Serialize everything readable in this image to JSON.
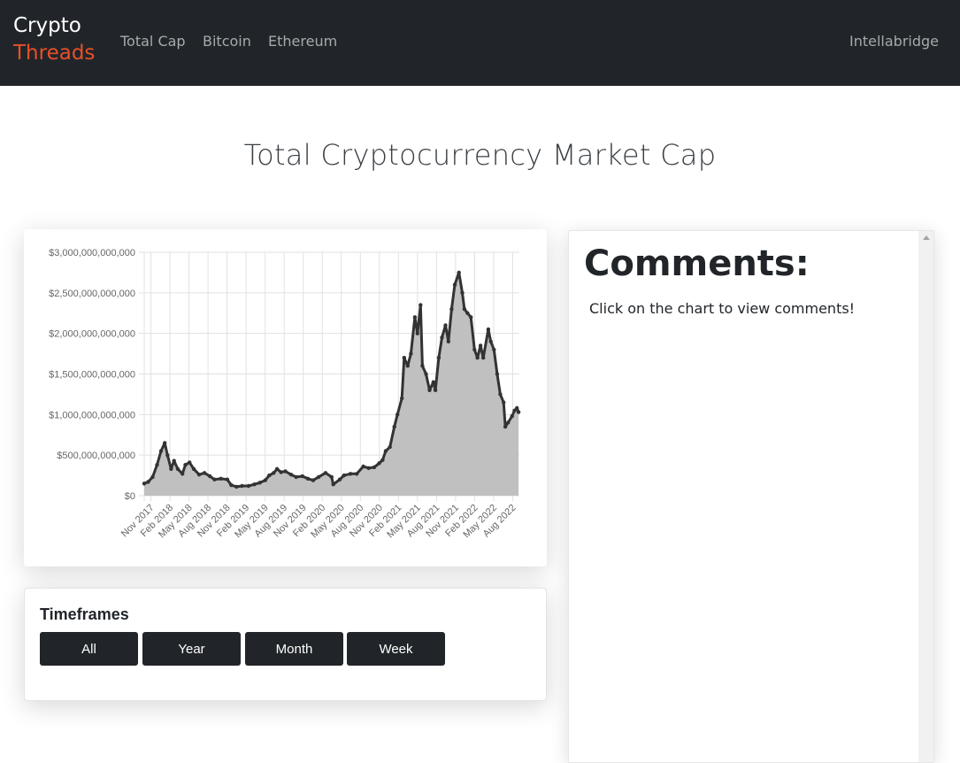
{
  "navbar": {
    "brand_top": "Crypto",
    "brand_bottom": "Threads",
    "links": [
      "Total Cap",
      "Bitcoin",
      "Ethereum"
    ],
    "right": "Intellabridge"
  },
  "page_title": "Total Cryptocurrency Market Cap",
  "timeframes": {
    "title": "Timeframes",
    "buttons": [
      "All",
      "Year",
      "Month",
      "Week"
    ]
  },
  "comments": {
    "title": "Comments:",
    "hint": "Click on the chart to view comments!"
  },
  "chart_data": {
    "type": "area",
    "title": "",
    "xlabel": "",
    "ylabel": "",
    "ylim": [
      0,
      3000000000000
    ],
    "grid": true,
    "fill_color": "#c0c0c0",
    "line_color": "#333333",
    "y_ticks": [
      "$0",
      "$500,000,000,000",
      "$1,000,000,000,000",
      "$1,500,000,000,000",
      "$2,000,000,000,000",
      "$2,500,000,000,000",
      "$3,000,000,000,000"
    ],
    "x_ticks": [
      "Nov 2017",
      "Feb 2018",
      "May 2018",
      "Aug 2018",
      "Nov 2018",
      "Feb 2019",
      "May 2019",
      "Aug 2019",
      "Nov 2019",
      "Feb 2020",
      "May 2020",
      "Aug 2020",
      "Nov 2020",
      "Feb 2021",
      "May 2021",
      "Aug 2021",
      "Nov 2021",
      "Feb 2022",
      "May 2022",
      "Aug 2022"
    ],
    "x": [
      "2017-10-01",
      "2017-10-20",
      "2017-11-10",
      "2017-12-01",
      "2017-12-20",
      "2018-01-07",
      "2018-01-20",
      "2018-02-06",
      "2018-02-20",
      "2018-03-10",
      "2018-04-01",
      "2018-04-15",
      "2018-05-05",
      "2018-05-25",
      "2018-06-20",
      "2018-07-15",
      "2018-08-10",
      "2018-09-01",
      "2018-10-01",
      "2018-11-01",
      "2018-11-20",
      "2018-12-15",
      "2019-01-10",
      "2019-02-10",
      "2019-03-10",
      "2019-04-05",
      "2019-05-01",
      "2019-05-20",
      "2019-06-10",
      "2019-06-26",
      "2019-07-15",
      "2019-08-05",
      "2019-09-01",
      "2019-09-25",
      "2019-10-25",
      "2019-11-20",
      "2019-12-15",
      "2020-01-10",
      "2020-02-12",
      "2020-03-12",
      "2020-03-20",
      "2020-04-20",
      "2020-05-10",
      "2020-06-10",
      "2020-07-10",
      "2020-08-10",
      "2020-09-05",
      "2020-10-01",
      "2020-10-25",
      "2020-11-10",
      "2020-11-25",
      "2020-12-15",
      "2021-01-05",
      "2021-01-20",
      "2021-02-10",
      "2021-02-21",
      "2021-03-10",
      "2021-03-25",
      "2021-04-13",
      "2021-04-25",
      "2021-05-10",
      "2021-05-19",
      "2021-06-05",
      "2021-06-22",
      "2021-07-10",
      "2021-07-20",
      "2021-08-05",
      "2021-08-20",
      "2021-09-06",
      "2021-09-20",
      "2021-10-05",
      "2021-10-20",
      "2021-11-09",
      "2021-11-25",
      "2021-12-05",
      "2021-12-20",
      "2022-01-05",
      "2022-01-22",
      "2022-02-05",
      "2022-02-20",
      "2022-03-05",
      "2022-03-29",
      "2022-04-10",
      "2022-04-25",
      "2022-05-10",
      "2022-05-25",
      "2022-06-10",
      "2022-06-18",
      "2022-07-01",
      "2022-07-20",
      "2022-08-01",
      "2022-08-12",
      "2022-08-20"
    ],
    "series": [
      {
        "values": [
          150000000000,
          170000000000,
          230000000000,
          380000000000,
          550000000000,
          650000000000,
          500000000000,
          330000000000,
          430000000000,
          330000000000,
          270000000000,
          380000000000,
          410000000000,
          330000000000,
          260000000000,
          280000000000,
          240000000000,
          200000000000,
          210000000000,
          200000000000,
          130000000000,
          110000000000,
          120000000000,
          120000000000,
          140000000000,
          160000000000,
          190000000000,
          250000000000,
          280000000000,
          330000000000,
          290000000000,
          300000000000,
          260000000000,
          230000000000,
          240000000000,
          210000000000,
          190000000000,
          230000000000,
          280000000000,
          230000000000,
          140000000000,
          200000000000,
          250000000000,
          270000000000,
          270000000000,
          360000000000,
          340000000000,
          350000000000,
          400000000000,
          440000000000,
          550000000000,
          600000000000,
          850000000000,
          1000000000000,
          1200000000000,
          1700000000000,
          1600000000000,
          1750000000000,
          2200000000000,
          2000000000000,
          2350000000000,
          1600000000000,
          1500000000000,
          1300000000000,
          1400000000000,
          1300000000000,
          1700000000000,
          1950000000000,
          2100000000000,
          1900000000000,
          2300000000000,
          2600000000000,
          2750000000000,
          2500000000000,
          2300000000000,
          2250000000000,
          2200000000000,
          1800000000000,
          1700000000000,
          1850000000000,
          1700000000000,
          2050000000000,
          1900000000000,
          1800000000000,
          1500000000000,
          1250000000000,
          1150000000000,
          850000000000,
          900000000000,
          980000000000,
          1050000000000,
          1080000000000,
          1030000000000
        ]
      }
    ]
  }
}
